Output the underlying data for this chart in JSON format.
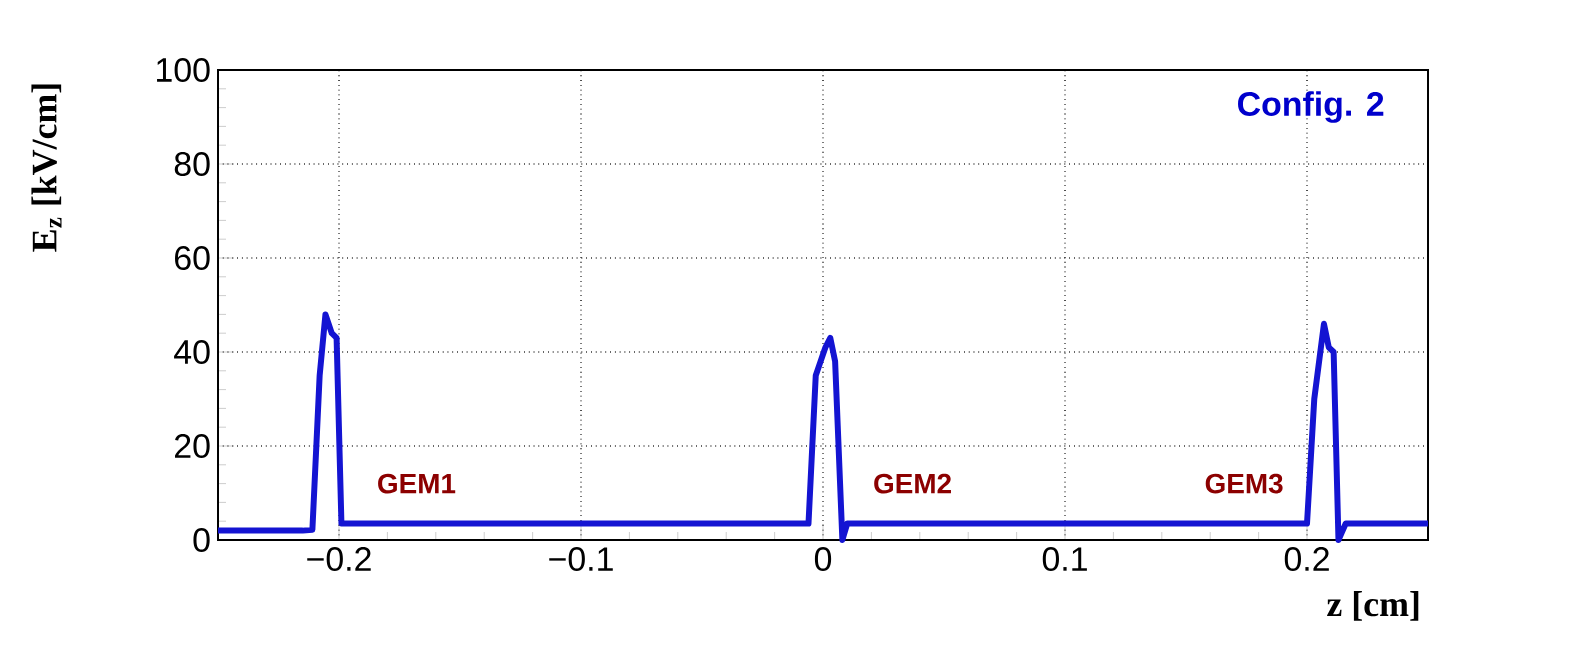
{
  "chart_data": {
    "type": "line",
    "xlabel": "z [cm]",
    "ylabel": "E$_{z}$ [kV/cm]",
    "annotations": [
      "Config. 2",
      {
        "text": "GEM1",
        "x": -0.2,
        "y": 12
      },
      {
        "text": "GEM2",
        "x": 0.005,
        "y": 12
      },
      {
        "text": "GEM3",
        "x": 0.2,
        "y": 12
      }
    ],
    "series": [
      {
        "color": "#1414d2",
        "x": [
          -0.25,
          -0.215,
          -0.211,
          -0.208,
          -0.2056,
          -0.203,
          -0.201,
          -0.199,
          -0.19,
          -0.1,
          -0.006,
          -0.003,
          0.001,
          0.003,
          0.005,
          0.008,
          0.01,
          0.1,
          0.2,
          0.203,
          0.207,
          0.209,
          0.211,
          0.213,
          0.216,
          0.25
        ],
        "values": [
          2,
          2,
          2.2,
          35,
          48,
          44,
          43,
          3.5,
          3.5,
          3.5,
          3.5,
          35,
          41,
          43,
          38,
          0,
          3.5,
          3.5,
          3.5,
          30,
          46,
          41,
          40,
          0,
          3.5,
          3.5
        ]
      }
    ],
    "xlim": [
      -0.25,
      0.25
    ],
    "ylim": [
      0,
      100
    ],
    "xticks": [
      {
        "value": -0.2,
        "label": "−0.2"
      },
      {
        "value": -0.1,
        "label": "−0.1"
      },
      0,
      0.1,
      0.2
    ],
    "yticks": [
      0,
      20,
      40,
      60,
      80,
      100
    ],
    "grid": true,
    "line_style": "solid",
    "marker": "none"
  }
}
